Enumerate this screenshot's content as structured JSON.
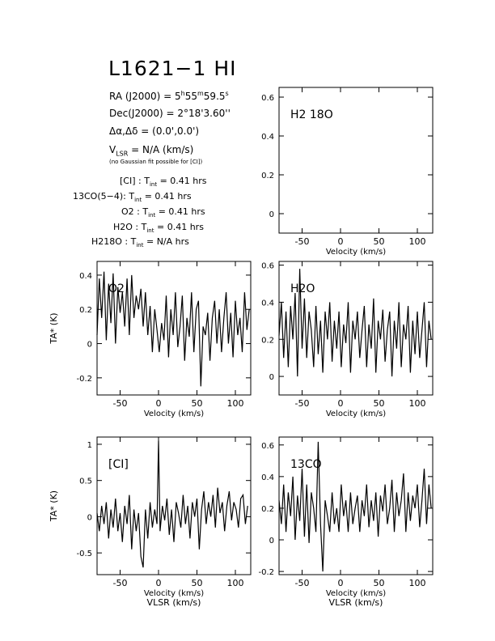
{
  "header": {
    "title": "L1621−1 HI",
    "ra": "RA (J2000) = 5h55m59.5s",
    "ra_prefix": "RA (J2000) = 5",
    "ra_h": "h",
    "ra_min": "55",
    "ra_m": "m",
    "ra_sec": "59.5",
    "ra_s": "s",
    "dec": "Dec(J2000) = 2°18'3.60''",
    "offset": "Δα,Δδ = (0.0',0.0')",
    "vlsr_prefix": "V",
    "vlsr_sub": "LSR",
    "vlsr_rest": " = N/A  (km/s)",
    "gauss_note": "(no Gaussian fit possible for [CI])"
  },
  "integrations": [
    {
      "label": "[CI] : T",
      "sub": "int",
      "value": " = 0.41 hrs"
    },
    {
      "label": "13CO(5−4): T",
      "sub": "int",
      "value": " = 0.41 hrs"
    },
    {
      "label": "O2 : T",
      "sub": "int",
      "value": " = 0.41 hrs"
    },
    {
      "label": "H2O : T",
      "sub": "int",
      "value": " = 0.41 hrs"
    },
    {
      "label": "H218O : T",
      "sub": "int",
      "value": " = N/A  hrs"
    }
  ],
  "chart_data": [
    {
      "type": "line",
      "title": "H2 18O",
      "xlabel": "Velocity (km/s)",
      "ylabel": "",
      "xlim": [
        -80,
        120
      ],
      "ylim": [
        -0.1,
        0.65
      ],
      "xticks": [
        -50,
        0,
        50,
        100
      ],
      "yticks": [
        0,
        0.2,
        0.4,
        0.6
      ],
      "series": []
    },
    {
      "type": "line",
      "title": "O2",
      "xlabel": "Velocity (km/s)",
      "ylabel": "TA* (K)",
      "xlim": [
        -80,
        120
      ],
      "ylim": [
        -0.3,
        0.48
      ],
      "xticks": [
        -50,
        0,
        50,
        100
      ],
      "yticks": [
        -0.2,
        0,
        0.2,
        0.4
      ],
      "series": [
        {
          "x": [
            -80,
            -77,
            -74,
            -71,
            -68,
            -65,
            -62,
            -59,
            -56,
            -53,
            -50,
            -47,
            -44,
            -41,
            -38,
            -35,
            -32,
            -29,
            -26,
            -23,
            -20,
            -17,
            -14,
            -11,
            -8,
            -5,
            -2,
            1,
            4,
            7,
            10,
            13,
            16,
            19,
            22,
            25,
            28,
            31,
            34,
            37,
            40,
            43,
            46,
            49,
            52,
            55,
            58,
            61,
            64,
            67,
            70,
            73,
            76,
            79,
            82,
            85,
            88,
            91,
            94,
            97,
            100,
            103,
            106,
            109,
            112,
            115,
            118
          ],
          "y": [
            0.05,
            0.38,
            0.15,
            0.42,
            0.02,
            0.35,
            0.12,
            0.41,
            0.0,
            0.33,
            0.18,
            0.3,
            0.1,
            0.38,
            0.05,
            0.4,
            0.15,
            0.28,
            0.2,
            0.32,
            0.1,
            0.3,
            0.05,
            0.22,
            -0.05,
            0.2,
            0.08,
            -0.05,
            0.12,
            0.02,
            0.28,
            -0.08,
            0.2,
            0.05,
            0.3,
            -0.02,
            0.1,
            0.28,
            -0.1,
            0.15,
            0.04,
            0.3,
            -0.05,
            0.2,
            0.25,
            -0.25,
            0.1,
            0.05,
            0.18,
            -0.1,
            0.15,
            0.25,
            0.0,
            0.2,
            -0.05,
            0.15,
            0.3,
            0.0,
            0.18,
            -0.08,
            0.25,
            0.05,
            0.15,
            -0.05,
            0.3,
            0.08,
            0.2
          ]
        }
      ]
    },
    {
      "type": "line",
      "title": "H2O",
      "xlabel": "Velocity (km/s)",
      "ylabel": "",
      "xlim": [
        -80,
        120
      ],
      "ylim": [
        -0.1,
        0.62
      ],
      "xticks": [
        -50,
        0,
        50,
        100
      ],
      "yticks": [
        0,
        0.2,
        0.4,
        0.6
      ],
      "series": [
        {
          "x": [
            -80,
            -77,
            -74,
            -71,
            -68,
            -65,
            -62,
            -59,
            -56,
            -53,
            -50,
            -47,
            -44,
            -41,
            -38,
            -35,
            -32,
            -29,
            -26,
            -23,
            -20,
            -17,
            -14,
            -11,
            -8,
            -5,
            -2,
            1,
            4,
            7,
            10,
            13,
            16,
            19,
            22,
            25,
            28,
            31,
            34,
            37,
            40,
            43,
            46,
            49,
            52,
            55,
            58,
            61,
            64,
            67,
            70,
            73,
            76,
            79,
            82,
            85,
            88,
            91,
            94,
            97,
            100,
            103,
            106,
            109,
            112,
            115,
            118
          ],
          "y": [
            0.22,
            0.4,
            0.1,
            0.35,
            0.05,
            0.38,
            0.2,
            0.45,
            0.0,
            0.58,
            0.15,
            0.42,
            0.1,
            0.35,
            0.25,
            0.05,
            0.38,
            0.12,
            0.3,
            0.02,
            0.35,
            0.2,
            0.4,
            0.08,
            0.3,
            0.15,
            0.35,
            0.05,
            0.28,
            0.18,
            0.4,
            0.02,
            0.3,
            0.2,
            0.35,
            0.1,
            0.25,
            0.38,
            0.05,
            0.28,
            0.15,
            0.42,
            0.02,
            0.3,
            0.2,
            0.36,
            0.08,
            0.25,
            0.35,
            0.0,
            0.3,
            0.15,
            0.4,
            0.05,
            0.28,
            0.2,
            0.38,
            0.02,
            0.3,
            0.12,
            0.35,
            0.1,
            0.25,
            0.4,
            0.05,
            0.3,
            0.2
          ]
        }
      ]
    },
    {
      "type": "line",
      "title": "[CI]",
      "xlabel": "Velocity (km/s)",
      "xlabel2": "VLSR (km/s)",
      "ylabel": "TA* (K)",
      "xlim": [
        -80,
        120
      ],
      "ylim": [
        -0.8,
        1.1
      ],
      "xticks": [
        -50,
        0,
        50,
        100
      ],
      "yticks": [
        -0.5,
        0,
        0.5,
        1
      ],
      "series": [
        {
          "x": [
            -80,
            -77,
            -74,
            -71,
            -68,
            -65,
            -62,
            -59,
            -56,
            -53,
            -50,
            -47,
            -44,
            -41,
            -38,
            -35,
            -32,
            -29,
            -26,
            -23,
            -20,
            -17,
            -14,
            -11,
            -8,
            -5,
            -2,
            0,
            2,
            5,
            8,
            11,
            14,
            17,
            20,
            23,
            26,
            29,
            32,
            35,
            38,
            41,
            44,
            47,
            50,
            53,
            56,
            59,
            62,
            65,
            68,
            71,
            74,
            77,
            80,
            83,
            86,
            89,
            92,
            95,
            98,
            101,
            104,
            107,
            110,
            113,
            116
          ],
          "y": [
            0.05,
            -0.2,
            0.15,
            -0.1,
            0.2,
            -0.3,
            0.1,
            -0.15,
            0.25,
            -0.2,
            0.05,
            -0.35,
            0.15,
            -0.1,
            0.3,
            -0.45,
            0.1,
            -0.2,
            0.05,
            -0.55,
            -0.7,
            0.1,
            -0.3,
            0.2,
            -0.15,
            0.1,
            -0.1,
            1.05,
            -0.2,
            0.15,
            -0.05,
            0.25,
            -0.25,
            0.1,
            -0.35,
            0.2,
            0.05,
            -0.15,
            0.3,
            -0.1,
            0.15,
            -0.3,
            0.2,
            0.0,
            0.25,
            -0.45,
            0.1,
            0.35,
            -0.1,
            0.2,
            0.0,
            0.3,
            -0.15,
            0.4,
            0.05,
            0.2,
            -0.2,
            0.15,
            0.35,
            -0.05,
            0.2,
            0.1,
            -0.15,
            0.25,
            0.3,
            -0.1,
            0.15
          ]
        }
      ]
    },
    {
      "type": "line",
      "title": "13CO",
      "xlabel": "Velocity (km/s)",
      "xlabel2": "VLSR (km/s)",
      "ylabel": "",
      "xlim": [
        -80,
        120
      ],
      "ylim": [
        -0.22,
        0.65
      ],
      "xticks": [
        -50,
        0,
        50,
        100
      ],
      "yticks": [
        -0.2,
        0,
        0.2,
        0.4,
        0.6
      ],
      "series": [
        {
          "x": [
            -80,
            -77,
            -74,
            -71,
            -68,
            -65,
            -62,
            -59,
            -56,
            -53,
            -50,
            -47,
            -44,
            -41,
            -38,
            -35,
            -32,
            -29,
            -26,
            -23,
            -20,
            -17,
            -14,
            -11,
            -8,
            -5,
            -2,
            1,
            4,
            7,
            10,
            13,
            16,
            19,
            22,
            25,
            28,
            31,
            34,
            37,
            40,
            43,
            46,
            49,
            52,
            55,
            58,
            61,
            64,
            67,
            70,
            73,
            76,
            79,
            82,
            85,
            88,
            91,
            94,
            97,
            100,
            103,
            106,
            109,
            112,
            115,
            118
          ],
          "y": [
            0.25,
            0.1,
            0.35,
            0.05,
            0.3,
            0.15,
            0.4,
            0.0,
            0.28,
            0.12,
            0.45,
            0.02,
            0.35,
            -0.02,
            0.3,
            0.2,
            0.05,
            0.62,
            0.1,
            -0.2,
            0.25,
            0.15,
            0.05,
            0.3,
            0.1,
            0.2,
            0.05,
            0.35,
            0.15,
            0.25,
            0.05,
            0.3,
            0.1,
            0.2,
            0.28,
            0.05,
            0.25,
            0.15,
            0.35,
            0.08,
            0.25,
            0.12,
            0.3,
            0.02,
            0.28,
            0.18,
            0.35,
            0.1,
            0.2,
            0.38,
            0.05,
            0.3,
            0.15,
            0.25,
            0.42,
            0.05,
            0.3,
            0.12,
            0.28,
            0.2,
            0.35,
            0.08,
            0.25,
            0.45,
            0.1,
            0.35,
            0.2
          ]
        }
      ]
    }
  ]
}
